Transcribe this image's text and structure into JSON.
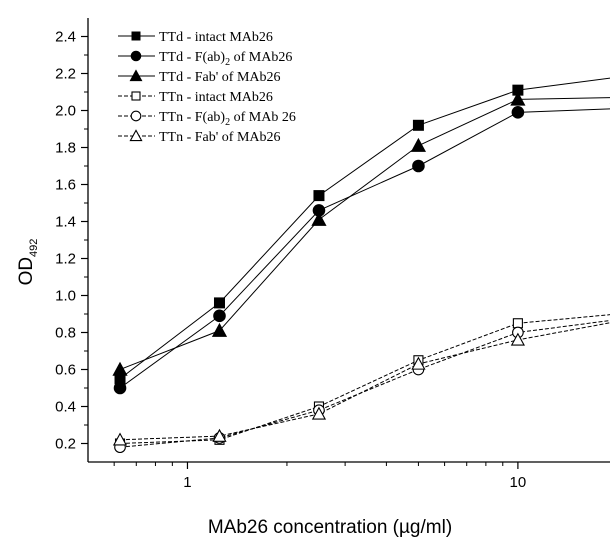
{
  "chart_data": {
    "type": "line",
    "title": "",
    "xlabel": "MAb26 concentration (µg/ml)",
    "ylabel": "OD",
    "ylabel_subscript": "492",
    "x_scale": "log",
    "xlim": [
      0.5,
      19
    ],
    "ylim": [
      0.1,
      2.5
    ],
    "x_ticks": [
      1,
      10
    ],
    "x_tick_labels": [
      "1",
      "10"
    ],
    "y_ticks": [
      0.2,
      0.4,
      0.6,
      0.8,
      1.0,
      1.2,
      1.4,
      1.6,
      1.8,
      2.0,
      2.2,
      2.4
    ],
    "y_tick_labels": [
      "0.2",
      "0.4",
      "0.6",
      "0.8",
      "1.0",
      "1.2",
      "1.4",
      "1.6",
      "1.8",
      "2.0",
      "2.2",
      "2.4"
    ],
    "grid": false,
    "legend_position": "top-left",
    "x": [
      0.625,
      1.25,
      2.5,
      5,
      10,
      20
    ],
    "series": [
      {
        "name": "TTd - intact MAb26",
        "name_parts": [
          "TTd - intact MAb26"
        ],
        "marker": "square",
        "filled": true,
        "dashed": false,
        "values": [
          0.55,
          0.96,
          1.54,
          1.92,
          2.11,
          2.18
        ]
      },
      {
        "name": "TTd - F(ab)2 of MAb26",
        "name_parts": [
          "TTd - F(ab)",
          "2",
          " of MAb26"
        ],
        "marker": "circle",
        "filled": true,
        "dashed": false,
        "values": [
          0.5,
          0.89,
          1.46,
          1.7,
          1.99,
          2.01
        ]
      },
      {
        "name": "TTd - Fab' of MAb26",
        "name_parts": [
          "TTd - Fab' of MAb26"
        ],
        "marker": "triangle",
        "filled": true,
        "dashed": false,
        "values": [
          0.6,
          0.81,
          1.41,
          1.81,
          2.06,
          2.07
        ]
      },
      {
        "name": "TTn - intact MAb26",
        "name_parts": [
          "TTn - intact MAb26"
        ],
        "marker": "square",
        "filled": false,
        "dashed": true,
        "values": [
          0.2,
          0.22,
          0.4,
          0.65,
          0.85,
          0.9
        ]
      },
      {
        "name": "TTn - F(ab)2 of MAb 26",
        "name_parts": [
          "TTn - F(ab)",
          "2",
          " of MAb 26"
        ],
        "marker": "circle",
        "filled": false,
        "dashed": true,
        "values": [
          0.18,
          0.23,
          0.38,
          0.6,
          0.8,
          0.87
        ]
      },
      {
        "name": "TTn - Fab' of MAb26",
        "name_parts": [
          "TTn - Fab' of MAb26"
        ],
        "marker": "triangle",
        "filled": false,
        "dashed": true,
        "values": [
          0.22,
          0.24,
          0.36,
          0.63,
          0.76,
          0.86
        ]
      }
    ]
  }
}
